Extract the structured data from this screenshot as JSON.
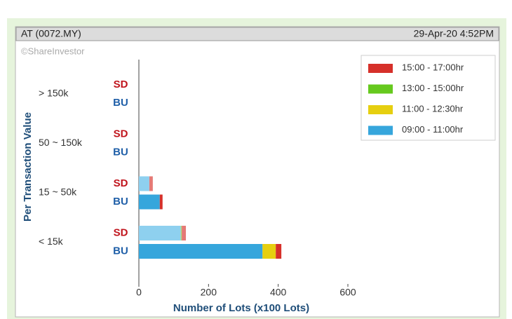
{
  "header": {
    "symbol": "AT (0072.MY)",
    "timestamp": "29-Apr-20 4:52PM",
    "watermark": "©ShareInvestor"
  },
  "chart_data": {
    "type": "stacked-bar-horizontal",
    "xlabel": "Number of Lots (x100 Lots)",
    "ylabel": "Per Transaction Value",
    "groups": [
      "> 150k",
      "50 ~ 150k",
      "15 ~ 50k",
      "< 15k"
    ],
    "categories": [
      "SD",
      "BU",
      "SD",
      "BU",
      "SD",
      "BU",
      "SD",
      "BU"
    ],
    "series": [
      {
        "name": "09:00 - 11:00hr",
        "color": "#36a6dc",
        "light_color": "#8ed0ef",
        "values": [
          0,
          0,
          0,
          0,
          30,
          60,
          120,
          355
        ]
      },
      {
        "name": "11:00 - 12:30hr",
        "color": "#e6cf10",
        "light_color": "#f0e070",
        "values": [
          0,
          0,
          0,
          0,
          0,
          0,
          0,
          38
        ]
      },
      {
        "name": "13:00 - 15:00hr",
        "color": "#66c91e",
        "light_color": "#a8dc80",
        "values": [
          0,
          0,
          0,
          0,
          0,
          0,
          3,
          0
        ]
      },
      {
        "name": "15:00 - 17:00hr",
        "color": "#d6302a",
        "light_color": "#e57a76",
        "values": [
          0,
          0,
          0,
          0,
          10,
          8,
          12,
          16
        ]
      }
    ],
    "xlim": [
      0,
      600
    ],
    "xticks": [
      0,
      200,
      400,
      600
    ],
    "legend": "upper right"
  }
}
